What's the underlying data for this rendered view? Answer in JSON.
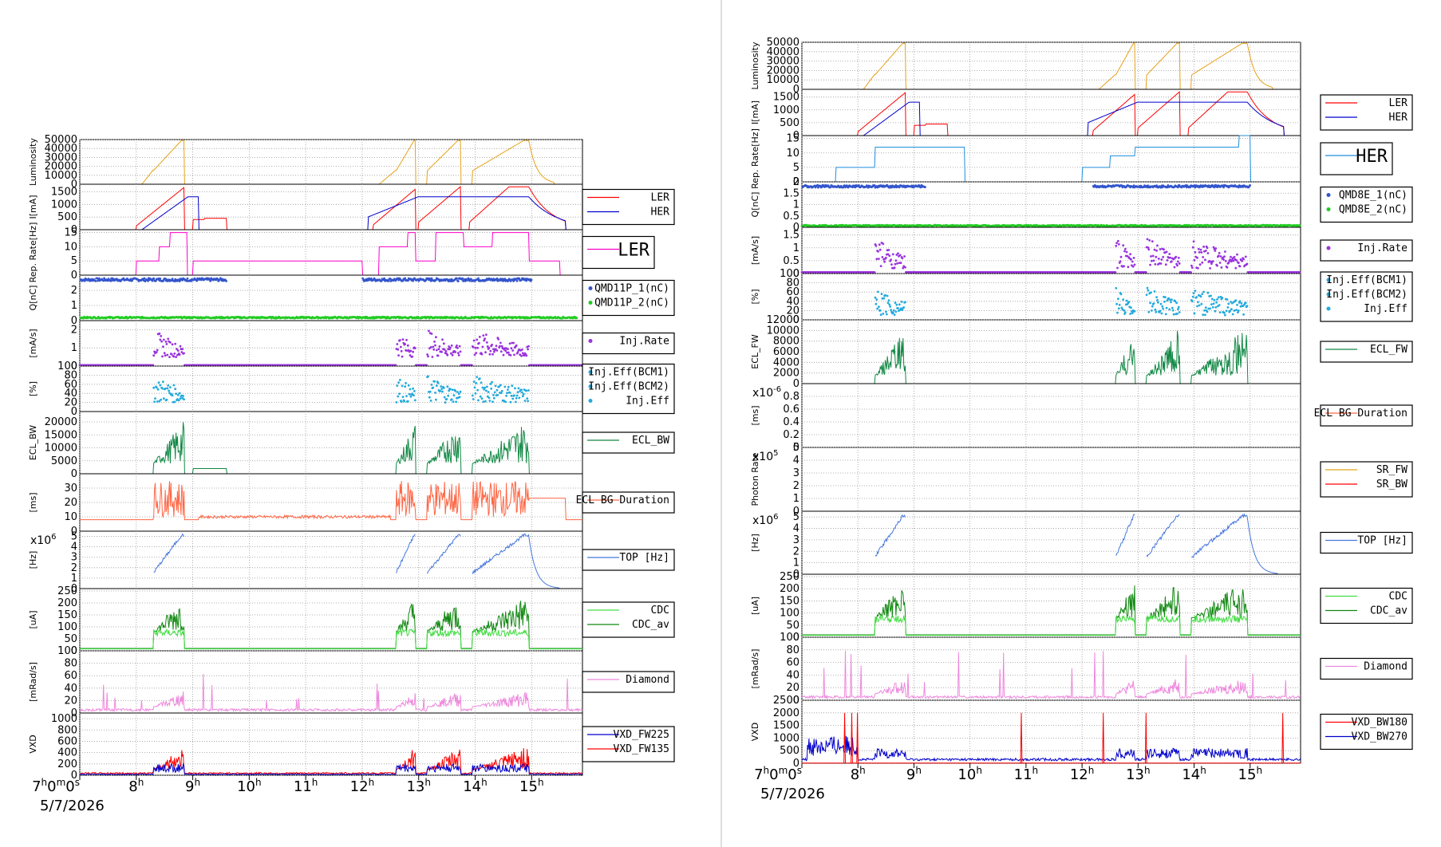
{
  "date_label": "5/7/2026",
  "colors": {
    "luminosity": "#e6a117",
    "ler": "#ff0000",
    "her": "#0000cc",
    "rep_ler": "#ff00cc",
    "rep_her": "#1f8fdd",
    "q1": "#3355cc",
    "q2": "#22cc22",
    "injrate": "#9933dd",
    "injeff": "#22aadd",
    "ecl": "#118844",
    "eclbg": "#ff6644",
    "top": "#4477dd",
    "cdc": "#118811",
    "cdcav": "#44dd44",
    "diamond": "#ee88dd",
    "vxd_a": "#0000cc",
    "vxd_b": "#ff0000",
    "sr_fw": "#e6a117",
    "sr_bw": "#ff0000"
  },
  "chart_data": [
    {
      "id": "left",
      "type": "line",
      "x_axis": {
        "unit": "hour",
        "ticks": [
          "7",
          "8",
          "9",
          "10",
          "11",
          "12",
          "13",
          "14",
          "15"
        ],
        "first_tick_label": "7h0m0s",
        "range": [
          7,
          15.9
        ]
      },
      "panels": [
        {
          "key": "lum",
          "ylabel": "Luminosity",
          "yticks": [
            "50000",
            "40000",
            "30000",
            "20000",
            "10000",
            "0"
          ],
          "ylim": [
            0,
            50000
          ],
          "series": [
            {
              "color": "luminosity",
              "kind": "lum"
            }
          ]
        },
        {
          "key": "cur",
          "ylabel": "I[mA]",
          "yticks": [
            "1500",
            "1000",
            "500",
            "0"
          ],
          "ylim": [
            0,
            1800
          ],
          "legend": [
            "LER",
            "HER"
          ],
          "legend_colors": [
            "ler",
            "her"
          ],
          "series": [
            {
              "color": "ler",
              "kind": "ler"
            },
            {
              "color": "her",
              "kind": "her"
            }
          ]
        },
        {
          "key": "rep",
          "ylabel": "Rep. Rate[Hz]",
          "yticks": [
            "15",
            "10",
            "5",
            "0"
          ],
          "ylim": [
            0,
            16
          ],
          "legend": [
            "LER"
          ],
          "legend_colors": [
            "rep_ler"
          ],
          "big_legend": true,
          "series": [
            {
              "color": "rep_ler",
              "kind": "rep"
            }
          ]
        },
        {
          "key": "q",
          "ylabel": "Q[nC]",
          "yticks": [
            "2",
            "1",
            "0"
          ],
          "ylim": [
            0,
            3
          ],
          "legend": [
            "QMD11P_1(nC)",
            "QMD11P_2(nC)"
          ],
          "legend_colors": [
            "q1",
            "q2"
          ],
          "dots": true,
          "series": [
            {
              "color": "q1",
              "kind": "q"
            },
            {
              "color": "q2",
              "kind": "q2"
            }
          ]
        },
        {
          "key": "ir",
          "ylabel": "[mA/s]",
          "yticks": [
            "2",
            "1",
            "0"
          ],
          "ylim": [
            0,
            2.5
          ],
          "legend": [
            "Inj.Rate"
          ],
          "legend_colors": [
            "injrate"
          ],
          "dots": true,
          "series": [
            {
              "color": "injrate",
              "kind": "ir"
            }
          ]
        },
        {
          "key": "eff",
          "ylabel": "[%]",
          "yticks": [
            "100",
            "80",
            "60",
            "40",
            "20",
            "0"
          ],
          "ylim": [
            0,
            100
          ],
          "legend": [
            "Inj.Eff(BCM1)",
            "Inj.Eff(BCM2)",
            "Inj.Eff"
          ],
          "legend_colors": [
            "injeff",
            "injeff",
            "injeff"
          ],
          "dots": true,
          "series": [
            {
              "color": "injeff",
              "kind": "eff"
            }
          ]
        },
        {
          "key": "ecl",
          "ylabel": "ECL_BW",
          "yticks": [
            "20000",
            "15000",
            "10000",
            "5000",
            "0"
          ],
          "ylim": [
            0,
            24000
          ],
          "legend": [
            "ECL_BW"
          ],
          "legend_colors": [
            "ecl"
          ],
          "series": [
            {
              "color": "ecl",
              "kind": "ecl"
            }
          ]
        },
        {
          "key": "eclbg",
          "ylabel": "[ms]",
          "yticks": [
            "30",
            "20",
            "10",
            "0"
          ],
          "ylim": [
            0,
            40
          ],
          "legend": [
            "ECL BG Duration"
          ],
          "legend_colors": [
            "eclbg"
          ],
          "series": [
            {
              "color": "eclbg",
              "kind": "eclbg"
            }
          ]
        },
        {
          "key": "top",
          "ylabel": "[Hz]",
          "exponent": "x10",
          "exponent_pow": "6",
          "yticks": [
            "5",
            "4",
            "3",
            "2",
            "1",
            "0"
          ],
          "ylim": [
            0,
            5.5
          ],
          "legend": [
            "TOP [Hz]"
          ],
          "legend_colors": [
            "top"
          ],
          "series": [
            {
              "color": "top",
              "kind": "top"
            }
          ]
        },
        {
          "key": "cdc",
          "ylabel": "[uA]",
          "yticks": [
            "250",
            "200",
            "150",
            "100",
            "50",
            "0"
          ],
          "ylim": [
            0,
            260
          ],
          "legend": [
            "CDC",
            "CDC_av"
          ],
          "legend_colors": [
            "cdcav",
            "cdc"
          ],
          "series": [
            {
              "color": "cdc",
              "kind": "cdc"
            },
            {
              "color": "cdcav",
              "kind": "cdcav"
            }
          ]
        },
        {
          "key": "dia",
          "ylabel": "[mRad/s]",
          "yticks": [
            "100",
            "80",
            "60",
            "40",
            "20",
            "0"
          ],
          "ylim": [
            0,
            100
          ],
          "legend": [
            "Diamond"
          ],
          "legend_colors": [
            "diamond"
          ],
          "series": [
            {
              "color": "diamond",
              "kind": "dia"
            }
          ]
        },
        {
          "key": "vxd",
          "ylabel": "VXD",
          "yticks": [
            "1000",
            "800",
            "600",
            "400",
            "200",
            "0"
          ],
          "ylim": [
            0,
            1100
          ],
          "legend": [
            "VXD_FW225",
            "VXD_FW135"
          ],
          "legend_colors": [
            "vxd_a",
            "vxd_b"
          ],
          "series": [
            {
              "color": "vxd_b",
              "kind": "vxd"
            },
            {
              "color": "vxd_a",
              "kind": "vxdb"
            }
          ]
        }
      ]
    },
    {
      "id": "right",
      "type": "line",
      "x_axis": {
        "unit": "hour",
        "ticks": [
          "7",
          "8",
          "9",
          "10",
          "11",
          "12",
          "13",
          "14",
          "15"
        ],
        "first_tick_label": "7h0m0s",
        "range": [
          7,
          15.9
        ]
      },
      "panels": [
        {
          "key": "lum",
          "ylabel": "Luminosity",
          "yticks": [
            "50000",
            "40000",
            "30000",
            "20000",
            "10000",
            "0"
          ],
          "ylim": [
            0,
            50000
          ],
          "series": [
            {
              "color": "luminosity",
              "kind": "lum"
            }
          ]
        },
        {
          "key": "cur",
          "ylabel": "I[mA]",
          "yticks": [
            "1500",
            "1000",
            "500",
            "0"
          ],
          "ylim": [
            0,
            1800
          ],
          "legend": [
            "LER",
            "HER"
          ],
          "legend_colors": [
            "ler",
            "her"
          ],
          "series": [
            {
              "color": "ler",
              "kind": "ler"
            },
            {
              "color": "her",
              "kind": "her"
            }
          ]
        },
        {
          "key": "rep",
          "ylabel": "Rep. Rate[Hz]",
          "yticks": [
            "15",
            "10",
            "5",
            "0"
          ],
          "ylim": [
            0,
            16
          ],
          "legend": [
            "HER"
          ],
          "legend_colors": [
            "rep_her"
          ],
          "big_legend": true,
          "series": [
            {
              "color": "rep_her",
              "kind": "reph"
            }
          ]
        },
        {
          "key": "q",
          "ylabel": "Q[nC]",
          "yticks": [
            "2",
            "1.5",
            "1",
            "0.5",
            "0"
          ],
          "ylim": [
            0,
            2
          ],
          "legend": [
            "QMD8E_1(nC)",
            "QMD8E_2(nC)"
          ],
          "legend_colors": [
            "q1",
            "q2"
          ],
          "dots": true,
          "series": [
            {
              "color": "q1",
              "kind": "qh"
            },
            {
              "color": "q2",
              "kind": "q2h"
            }
          ]
        },
        {
          "key": "ir",
          "ylabel": "[mA/s]",
          "yticks": [
            "1.5",
            "1",
            "0.5",
            "0"
          ],
          "ylim": [
            0,
            1.8
          ],
          "legend": [
            "Inj.Rate"
          ],
          "legend_colors": [
            "injrate"
          ],
          "dots": true,
          "series": [
            {
              "color": "injrate",
              "kind": "irh"
            }
          ]
        },
        {
          "key": "eff",
          "ylabel": "[%]",
          "yticks": [
            "100",
            "80",
            "60",
            "40",
            "20",
            "0"
          ],
          "ylim": [
            0,
            100
          ],
          "legend": [
            "Inj.Eff(BCM1)",
            "Inj.Eff(BCM2)",
            "Inj.Eff"
          ],
          "legend_colors": [
            "injeff",
            "injeff",
            "injeff"
          ],
          "dots": true,
          "series": [
            {
              "color": "injeff",
              "kind": "effh"
            }
          ]
        },
        {
          "key": "ecl",
          "ylabel": "ECL_FW",
          "yticks": [
            "12000",
            "10000",
            "8000",
            "6000",
            "4000",
            "2000",
            "0"
          ],
          "ylim": [
            0,
            12000
          ],
          "legend": [
            "ECL_FW"
          ],
          "legend_colors": [
            "ecl"
          ],
          "series": [
            {
              "color": "ecl",
              "kind": "eclh"
            }
          ]
        },
        {
          "key": "eclbg",
          "ylabel": "[ms]",
          "exponent": "x10",
          "exponent_pow": "-6",
          "yticks": [
            "0.8",
            "0.6",
            "0.4",
            "0.2",
            "0"
          ],
          "ylim": [
            0,
            1
          ],
          "legend": [
            "ECL BG Duration"
          ],
          "legend_colors": [
            "eclbg"
          ],
          "series": []
        },
        {
          "key": "sr",
          "ylabel": "Photon Rate",
          "exponent": "x10",
          "exponent_pow": "5",
          "yticks": [
            "5",
            "4",
            "3",
            "2",
            "1",
            "0"
          ],
          "ylim": [
            0,
            5
          ],
          "legend": [
            "SR_FW",
            "SR_BW"
          ],
          "legend_colors": [
            "sr_fw",
            "sr_bw"
          ],
          "series": [
            {
              "color": "sr_fw",
              "kind": "flat"
            }
          ]
        },
        {
          "key": "top",
          "ylabel": "[Hz]",
          "exponent": "x10",
          "exponent_pow": "6",
          "yticks": [
            "5",
            "4",
            "3",
            "2",
            "1",
            "0"
          ],
          "ylim": [
            0,
            5.5
          ],
          "legend": [
            "TOP [Hz]"
          ],
          "legend_colors": [
            "top"
          ],
          "series": [
            {
              "color": "top",
              "kind": "top"
            }
          ]
        },
        {
          "key": "cdc",
          "ylabel": "[uA]",
          "yticks": [
            "250",
            "200",
            "150",
            "100",
            "50",
            "0"
          ],
          "ylim": [
            0,
            260
          ],
          "legend": [
            "CDC",
            "CDC_av"
          ],
          "legend_colors": [
            "cdcav",
            "cdc"
          ],
          "series": [
            {
              "color": "cdc",
              "kind": "cdc"
            },
            {
              "color": "cdcav",
              "kind": "cdcav"
            }
          ]
        },
        {
          "key": "dia",
          "ylabel": "[mRad/s]",
          "yticks": [
            "100",
            "80",
            "60",
            "40",
            "20",
            "0"
          ],
          "ylim": [
            0,
            100
          ],
          "legend": [
            "Diamond"
          ],
          "legend_colors": [
            "diamond"
          ],
          "series": [
            {
              "color": "diamond",
              "kind": "dia"
            }
          ]
        },
        {
          "key": "vxd",
          "ylabel": "VXD",
          "yticks": [
            "2500",
            "2000",
            "1500",
            "1000",
            "500",
            "0"
          ],
          "ylim": [
            0,
            2500
          ],
          "legend": [
            "VXD_BW180",
            "VXD_BW270"
          ],
          "legend_colors": [
            "vxd_b",
            "vxd_a"
          ],
          "series": [
            {
              "color": "vxd_a",
              "kind": "vxdr"
            },
            {
              "color": "vxd_b",
              "kind": "vxdrb"
            }
          ]
        }
      ]
    }
  ]
}
